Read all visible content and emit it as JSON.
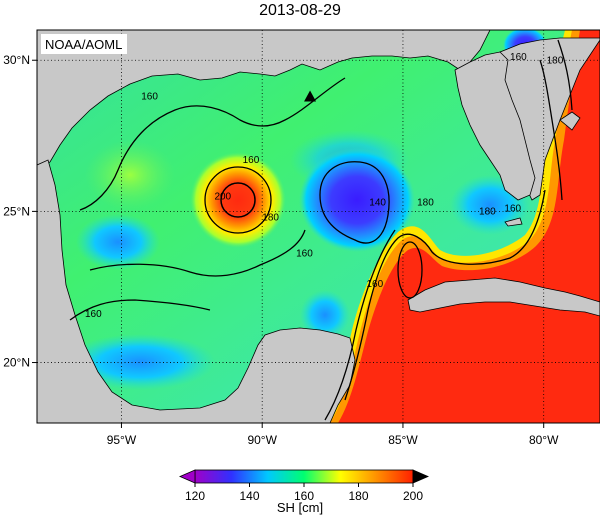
{
  "title": "2013-08-29",
  "credit": "NOAA/AOML",
  "map": {
    "lon_range": [
      -98,
      -78
    ],
    "lat_range": [
      18,
      31
    ],
    "lon_ticks": [
      {
        "value": -95,
        "label": "95°W"
      },
      {
        "value": -90,
        "label": "90°W"
      },
      {
        "value": -85,
        "label": "85°W"
      },
      {
        "value": -80,
        "label": "80°W"
      }
    ],
    "lat_ticks": [
      {
        "value": 30,
        "label": "30°N"
      },
      {
        "value": 25,
        "label": "25°N"
      },
      {
        "value": 20,
        "label": "20°N"
      }
    ],
    "grid": true,
    "marker": {
      "shape": "triangle",
      "lon": -88.3,
      "lat": 28.8
    },
    "contour_labels": [
      {
        "text": "160",
        "lon": -94.0,
        "lat": 28.7
      },
      {
        "text": "160",
        "lon": -90.4,
        "lat": 26.6
      },
      {
        "text": "200",
        "lon": -91.4,
        "lat": 25.4
      },
      {
        "text": "180",
        "lon": -89.7,
        "lat": 24.7
      },
      {
        "text": "160",
        "lon": -88.5,
        "lat": 23.5
      },
      {
        "text": "160",
        "lon": -96.0,
        "lat": 21.5
      },
      {
        "text": "140",
        "lon": -85.9,
        "lat": 25.2
      },
      {
        "text": "160",
        "lon": -86.0,
        "lat": 22.5
      },
      {
        "text": "180",
        "lon": -84.2,
        "lat": 25.2
      },
      {
        "text": "160",
        "lon": -81.1,
        "lat": 25.0
      },
      {
        "text": "180",
        "lon": -82.0,
        "lat": 24.9
      },
      {
        "text": "160",
        "lon": -80.9,
        "lat": 30.0
      },
      {
        "text": "180",
        "lon": -79.6,
        "lat": 29.9
      }
    ]
  },
  "colorbar": {
    "label": "SH [cm]",
    "min": 120,
    "max": 200,
    "ticks": [
      120,
      140,
      160,
      180,
      200
    ],
    "stops": [
      "#a000c8",
      "#3030ff",
      "#00c8ff",
      "#00ff70",
      "#ffff00",
      "#ff9000",
      "#ff2000"
    ]
  },
  "colors": {
    "land": "#c8c8c8",
    "red_field": "#ff2a10",
    "blue_eddy": "#3a1cff",
    "background_field": "#40ee80"
  }
}
